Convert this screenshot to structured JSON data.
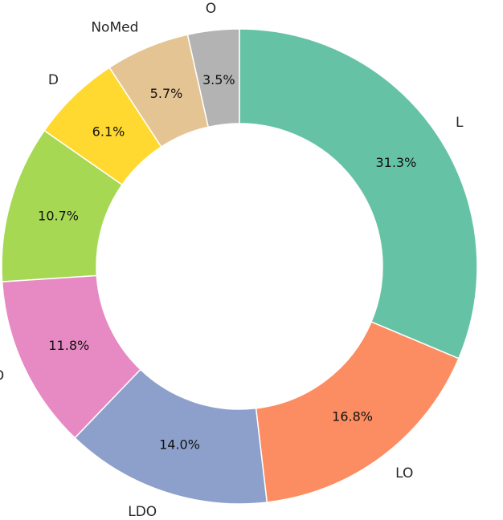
{
  "chart_data": {
    "type": "pie",
    "style": "donut",
    "start": "top",
    "direction": "counterclockwise",
    "title": "",
    "categories": [
      "O",
      "NoMed",
      "D",
      "DO",
      "LD",
      "LDO",
      "LO",
      "L"
    ],
    "values": [
      3.5,
      5.7,
      6.1,
      10.7,
      11.8,
      14.0,
      16.8,
      31.3
    ],
    "value_labels": [
      "3.5%",
      "5.7%",
      "6.1%",
      "10.7%",
      "11.8%",
      "14.0%",
      "16.8%",
      "31.3%"
    ],
    "colors": [
      "#b3b3b3",
      "#e5c494",
      "#ffd92f",
      "#a6d854",
      "#e78ac3",
      "#8da0cb",
      "#fc8d62",
      "#66c2a5"
    ],
    "legend": "none"
  }
}
